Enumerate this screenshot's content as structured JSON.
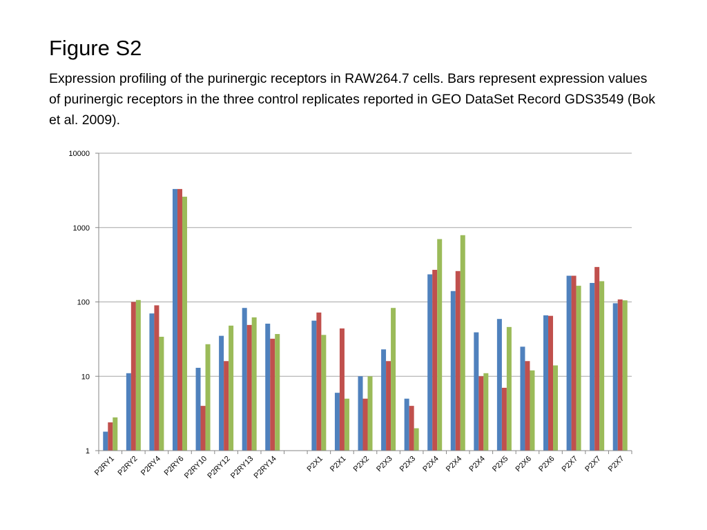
{
  "title": "Figure S2",
  "caption": "Expression profiling of the purinergic receptors in RAW264.7 cells. Bars represent expression values of purinergic receptors in the three control replicates reported in GEO DataSet Record GDS3549 (Bok et al. 2009).",
  "colors": {
    "series": [
      "#4F81BD",
      "#C0504D",
      "#9BBB59"
    ],
    "gridline": "#A6A6A6",
    "axis": "#868686"
  },
  "chart_data": {
    "type": "bar",
    "title": "",
    "xlabel": "",
    "ylabel": "",
    "y_scale": "log",
    "ylim": [
      1,
      10000
    ],
    "y_ticks": [
      "1",
      "10",
      "100",
      "1000",
      "10000"
    ],
    "grid": true,
    "legend": "none",
    "categories": [
      "P2RY1",
      "P2RY2",
      "P2RY4",
      "P2RY6",
      "P2RY10",
      "P2RY12",
      "P2RY13",
      "P2RY14",
      "",
      "P2X1",
      "P2X1",
      "P2X2",
      "P2X3",
      "P2X3",
      "P2X4",
      "P2X4",
      "P2X4",
      "P2X5",
      "P2X6",
      "P2X6",
      "P2X7",
      "P2X7",
      "P2X7"
    ],
    "series": [
      {
        "values": [
          1.8,
          11,
          70,
          3300,
          13,
          35,
          83,
          51,
          null,
          56,
          6,
          10,
          23,
          5,
          235,
          140,
          39,
          59,
          25,
          66,
          225,
          180,
          96
        ]
      },
      {
        "values": [
          2.4,
          100,
          90,
          3300,
          4,
          16,
          49,
          32,
          null,
          72,
          44,
          5,
          16,
          4,
          270,
          260,
          10,
          7,
          16,
          65,
          225,
          295,
          108
        ]
      },
      {
        "values": [
          2.8,
          106,
          34,
          2600,
          27,
          48,
          62,
          37,
          null,
          36,
          5,
          10,
          83,
          2,
          700,
          790,
          11,
          46,
          12,
          14,
          165,
          190,
          105
        ]
      }
    ]
  }
}
